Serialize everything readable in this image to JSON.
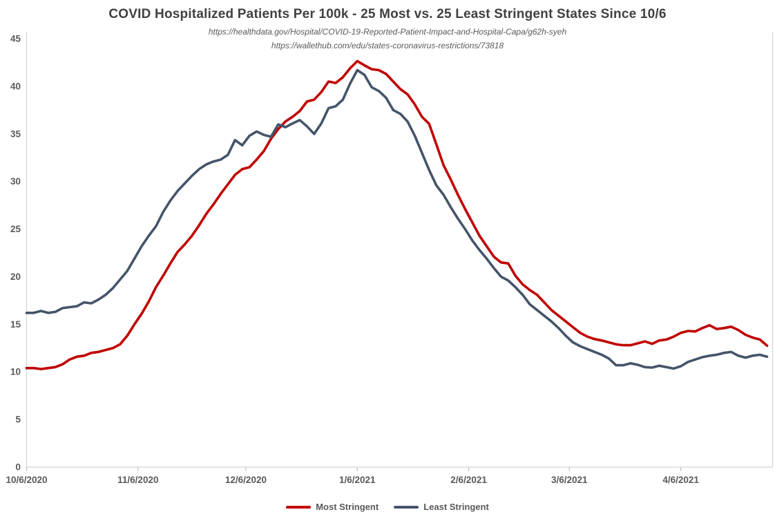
{
  "chart": {
    "title": "COVID Hospitalized Patients Per 100k - 25 Most vs. 25 Least Stringent States Since 10/6",
    "sources": [
      "https://healthdata.gov/Hospital/COVID-19-Reported-Patient-Impact-and-Hospital-Capa/g62h-syeh",
      "https://wallethub.com/edu/states-coronavirus-restrictions/73818"
    ],
    "legend": {
      "items": [
        "Most Stringent",
        "Least Stringent"
      ]
    }
  },
  "chart_data": {
    "type": "line",
    "title": "COVID Hospitalized Patients Per 100k - 25 Most vs. 25 Least Stringent States Since 10/6",
    "x_unit": "days since 10/6/2020 (2-day sampling)",
    "x_step_days": 2,
    "x_start_label": "10/6/2020",
    "x_end_label": "4/30/2021",
    "ylim": [
      0,
      45
    ],
    "y_ticks": [
      0,
      5,
      10,
      15,
      20,
      25,
      30,
      35,
      40,
      45
    ],
    "x_ticks": [
      {
        "day": 0,
        "label": "10/6/2020"
      },
      {
        "day": 31,
        "label": "11/6/2020"
      },
      {
        "day": 61,
        "label": "12/6/2020"
      },
      {
        "day": 92,
        "label": "1/6/2021"
      },
      {
        "day": 123,
        "label": "2/6/2021"
      },
      {
        "day": 151,
        "label": "3/6/2021"
      },
      {
        "day": 182,
        "label": "4/6/2021"
      }
    ],
    "grid": false,
    "legend_position": "bottom",
    "series": [
      {
        "name": "Most Stringent",
        "color": "#C00000",
        "values": [
          10.4,
          10.4,
          10.3,
          10.4,
          10.5,
          10.8,
          11.3,
          11.6,
          11.7,
          12.0,
          12.1,
          12.3,
          12.5,
          12.9,
          13.8,
          15.0,
          16.1,
          17.4,
          18.9,
          20.1,
          21.4,
          22.6,
          23.4,
          24.3,
          25.4,
          26.6,
          27.6,
          28.7,
          29.7,
          30.7,
          31.3,
          31.5,
          32.3,
          33.2,
          34.5,
          35.5,
          36.3,
          36.8,
          37.4,
          38.4,
          38.6,
          39.4,
          40.5,
          40.35,
          40.95,
          41.9,
          42.65,
          42.2,
          41.8,
          41.7,
          41.3,
          40.5,
          39.7,
          39.15,
          38.1,
          36.8,
          36.05,
          33.9,
          31.7,
          30.2,
          28.6,
          27.1,
          25.7,
          24.3,
          23.2,
          22.1,
          21.5,
          21.4,
          20.1,
          19.2,
          18.6,
          18.1,
          17.3,
          16.5,
          15.9,
          15.3,
          14.7,
          14.1,
          13.7,
          13.45,
          13.3,
          13.1,
          12.9,
          12.8,
          12.8,
          13.0,
          13.2,
          12.95,
          13.3,
          13.4,
          13.7,
          14.1,
          14.3,
          14.25,
          14.6,
          14.9,
          14.5,
          14.6,
          14.75,
          14.4,
          13.9,
          13.6,
          13.4,
          12.75
        ]
      },
      {
        "name": "Least Stringent",
        "color": "#44546A",
        "values": [
          16.2,
          16.2,
          16.4,
          16.2,
          16.3,
          16.7,
          16.8,
          16.9,
          17.3,
          17.2,
          17.6,
          18.1,
          18.8,
          19.7,
          20.6,
          21.9,
          23.2,
          24.3,
          25.3,
          26.8,
          28.0,
          29.0,
          29.8,
          30.6,
          31.3,
          31.8,
          32.1,
          32.3,
          32.8,
          34.35,
          33.8,
          34.8,
          35.25,
          34.9,
          34.7,
          36.0,
          35.7,
          36.1,
          36.45,
          35.8,
          35.0,
          36.1,
          37.7,
          37.9,
          38.6,
          40.3,
          41.7,
          41.2,
          39.9,
          39.5,
          38.8,
          37.5,
          37.1,
          36.3,
          34.8,
          33.0,
          31.2,
          29.6,
          28.6,
          27.3,
          26.1,
          25.0,
          23.8,
          22.8,
          21.9,
          20.9,
          20.0,
          19.6,
          18.9,
          18.1,
          17.1,
          16.5,
          15.9,
          15.3,
          14.6,
          13.8,
          13.1,
          12.7,
          12.4,
          12.1,
          11.8,
          11.4,
          10.7,
          10.7,
          10.9,
          10.75,
          10.5,
          10.45,
          10.65,
          10.5,
          10.35,
          10.6,
          11.05,
          11.3,
          11.55,
          11.7,
          11.8,
          12.0,
          12.1,
          11.7,
          11.5,
          11.7,
          11.8,
          11.6
        ]
      }
    ]
  },
  "colors": {
    "title": "#404040",
    "subtitle": "#595959",
    "axis_text": "#595959",
    "axis_line": "#D2D2D2",
    "tick_mark": "#C0C0C0",
    "background": "#FFFFFF"
  }
}
